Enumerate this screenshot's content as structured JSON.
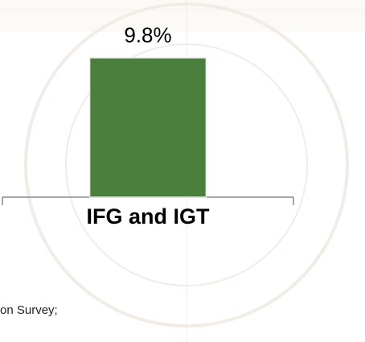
{
  "chart_data": {
    "type": "bar",
    "categories": [
      "IFG and IGT"
    ],
    "values": [
      9.8
    ],
    "value_labels": [
      "9.8%"
    ],
    "color": "#4b7f3e",
    "ylim": [
      0,
      12
    ]
  },
  "footnote": "on Survey;"
}
